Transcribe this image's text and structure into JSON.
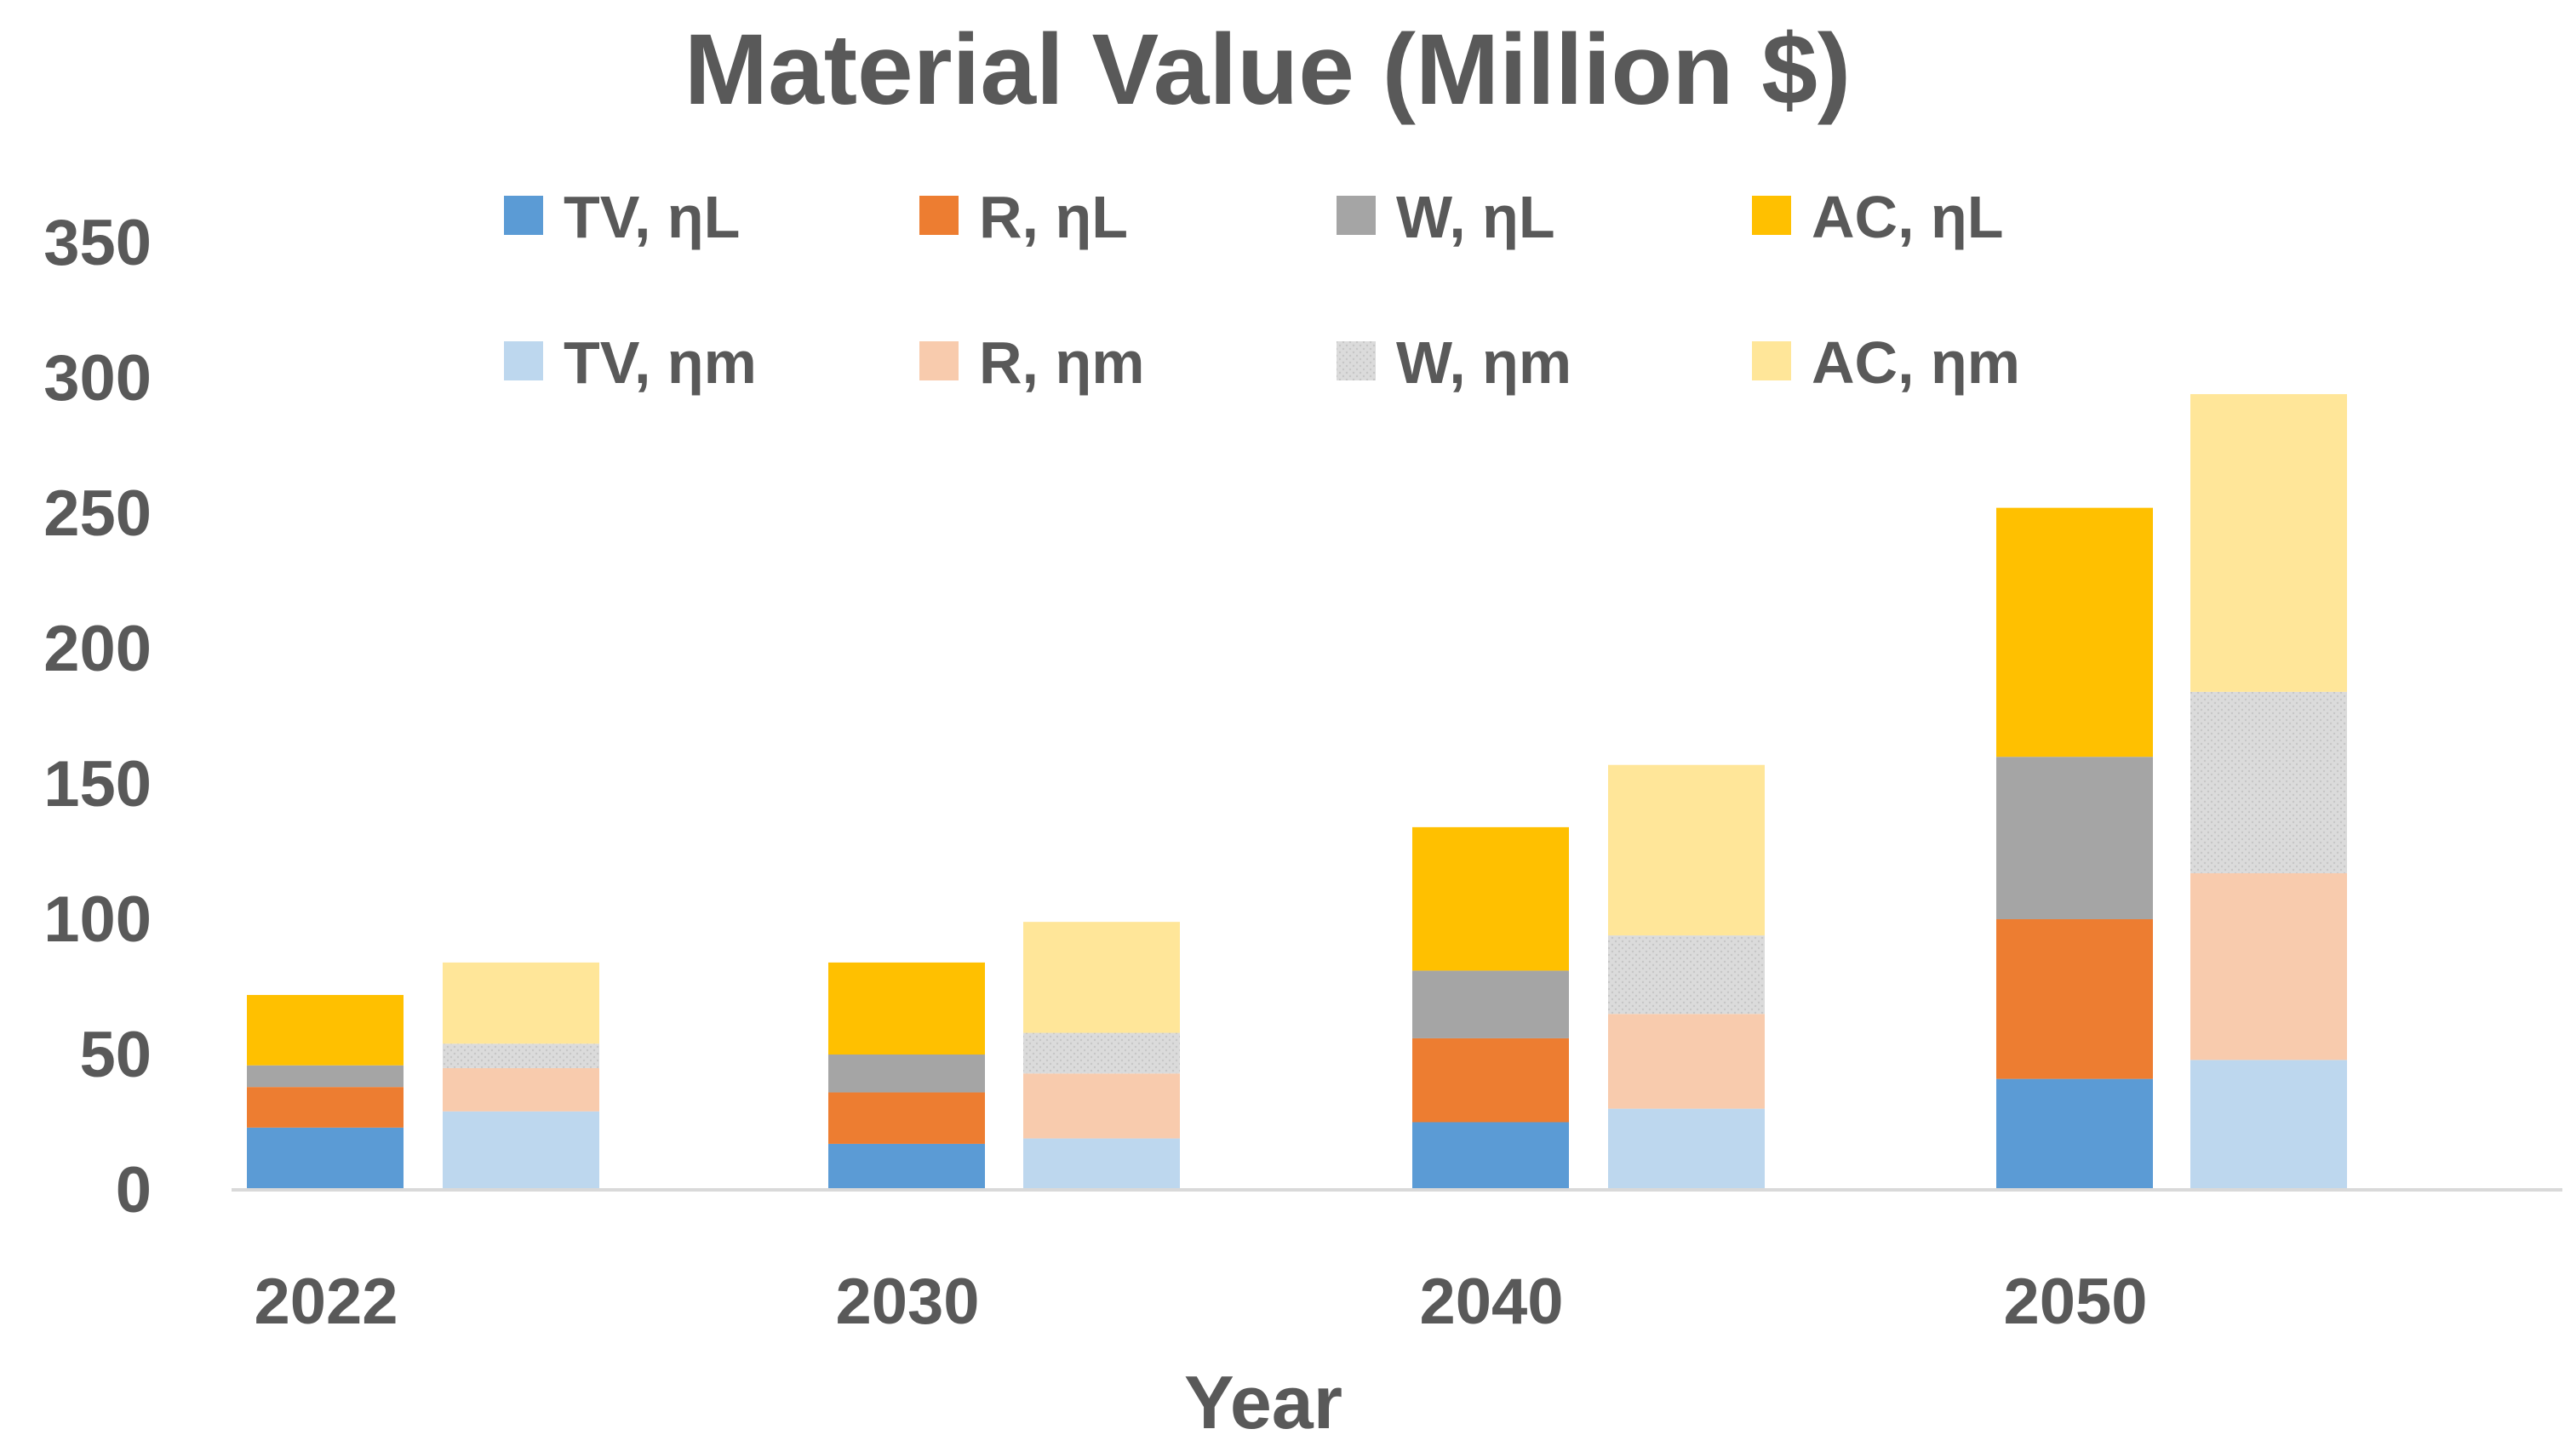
{
  "chart_data": {
    "type": "bar",
    "stacked": true,
    "title": "Material Value (Million $)",
    "xlabel": "Year",
    "ylabel": "",
    "ylim": [
      0,
      350
    ],
    "yticks": [
      0,
      50,
      100,
      150,
      200,
      250,
      300,
      350
    ],
    "grid": false,
    "legend_position": "top",
    "categories": [
      "2022",
      "2030",
      "2040",
      "2050"
    ],
    "groups": [
      {
        "name": "ηL",
        "series": [
          {
            "name": "TV, ηL",
            "color": "#5B9BD5",
            "values": [
              23,
              17,
              25,
              41
            ]
          },
          {
            "name": "R, ηL",
            "color": "#ED7D31",
            "values": [
              15,
              19,
              31,
              59
            ]
          },
          {
            "name": "W, ηL",
            "color": "#A5A5A5",
            "values": [
              8,
              14,
              25,
              60
            ]
          },
          {
            "name": "AC, ηL",
            "color": "#FFC000",
            "values": [
              26,
              34,
              53,
              92
            ]
          }
        ]
      },
      {
        "name": "ηm",
        "series": [
          {
            "name": "TV, ηm",
            "color": "#BDD7EE",
            "values": [
              29,
              19,
              30,
              48
            ]
          },
          {
            "name": "R, ηm",
            "color": "#F8CBAD",
            "values": [
              16,
              24,
              35,
              69
            ]
          },
          {
            "name": "W, ηm",
            "color": "#DBDBDB",
            "values": [
              9,
              15,
              29,
              67
            ]
          },
          {
            "name": "AC, ηm",
            "color": "#FFE699",
            "values": [
              30,
              41,
              63,
              110
            ]
          }
        ]
      }
    ]
  }
}
